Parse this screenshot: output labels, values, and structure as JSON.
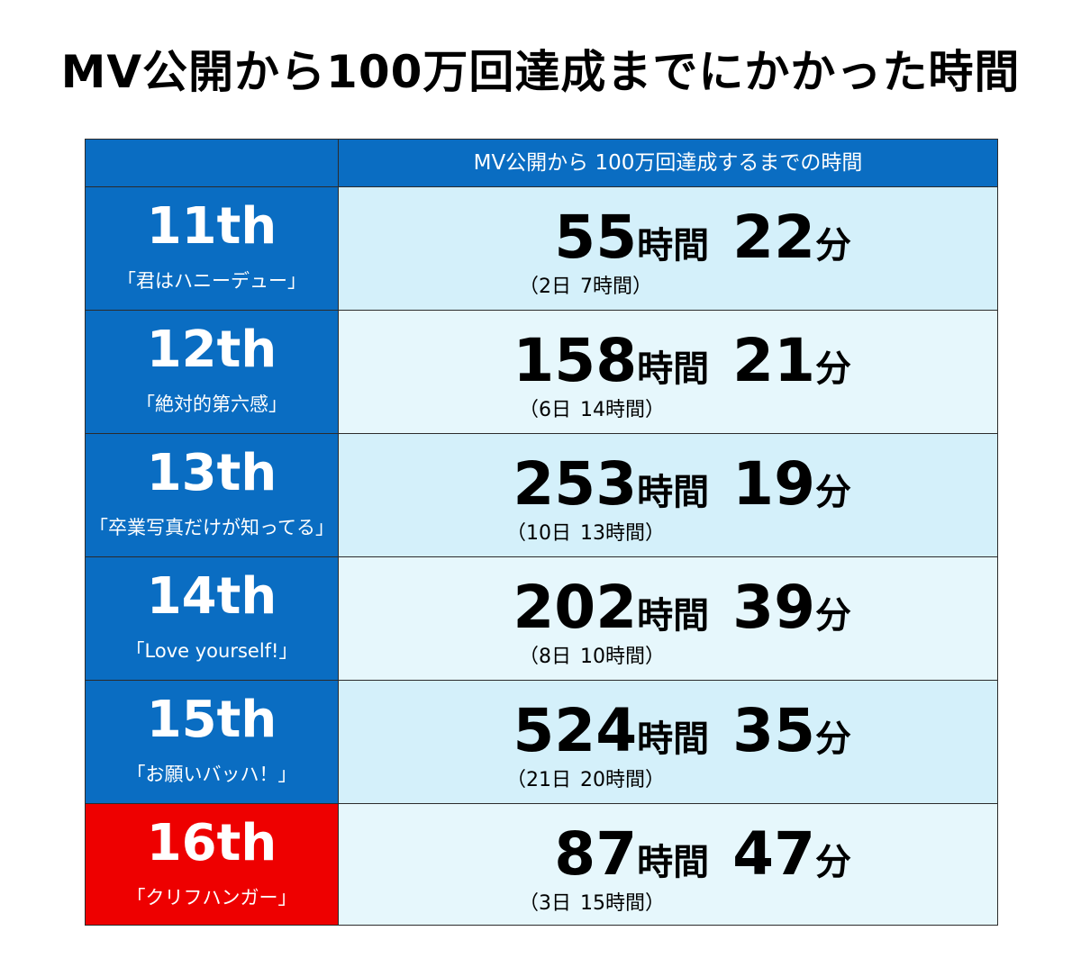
{
  "title": "MV公開から100万回達成までにかかった時間",
  "colors": {
    "header_blue": "#0a6dc2",
    "label_blue": "#0a6dc2",
    "label_highlight": "#ee0000",
    "row_light": "#e6f7fc",
    "row_lighter": "#d4f0fa"
  },
  "chart_data": {
    "type": "table",
    "columns": [
      "",
      "MV公開から 100万回達成するまでの時間"
    ],
    "rows": [
      {
        "single": "11th",
        "song": "「君はハニーデュー」",
        "hours": 55,
        "minutes": 22,
        "days": 2,
        "rem_hours": 7,
        "highlight": false
      },
      {
        "single": "12th",
        "song": "「絶対的第六感」",
        "hours": 158,
        "minutes": 21,
        "days": 6,
        "rem_hours": 14,
        "highlight": false
      },
      {
        "single": "13th",
        "song": "「卒業写真だけが知ってる」",
        "hours": 253,
        "minutes": 19,
        "days": 10,
        "rem_hours": 13,
        "highlight": false
      },
      {
        "single": "14th",
        "song": "「Love yourself!」",
        "hours": 202,
        "minutes": 39,
        "days": 8,
        "rem_hours": 10,
        "highlight": false
      },
      {
        "single": "15th",
        "song": "「お願いバッハ！」",
        "hours": 524,
        "minutes": 35,
        "days": 21,
        "rem_hours": 20,
        "highlight": false
      },
      {
        "single": "16th",
        "song": "「クリフハンガー」",
        "hours": 87,
        "minutes": 47,
        "days": 3,
        "rem_hours": 15,
        "highlight": true
      }
    ],
    "unit_hours": "時間",
    "unit_minutes": "分",
    "unit_days": "日",
    "paren_open": "（",
    "paren_close": "）"
  }
}
